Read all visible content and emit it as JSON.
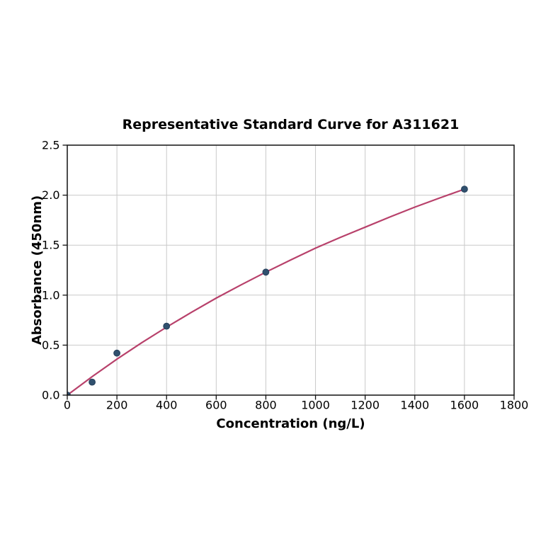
{
  "chart_data": {
    "type": "scatter",
    "title": "Representative Standard Curve for A311621",
    "xlabel": "Concentration (ng/L)",
    "ylabel": "Absorbance (450nm)",
    "xlim": [
      0,
      1800
    ],
    "ylim": [
      0,
      2.5
    ],
    "xticks": [
      0,
      200,
      400,
      600,
      800,
      1000,
      1200,
      1400,
      1600,
      1800
    ],
    "xtick_labels": [
      "0",
      "200",
      "400",
      "600",
      "800",
      "1000",
      "1200",
      "1400",
      "1600",
      "1800"
    ],
    "yticks": [
      0,
      0.5,
      1.0,
      1.5,
      2.0,
      2.5
    ],
    "ytick_labels": [
      "0.0",
      "0.5",
      "1.0",
      "1.5",
      "2.0",
      "2.5"
    ],
    "grid": true,
    "legend": "none",
    "points": {
      "name": "standards",
      "x": [
        0,
        100,
        200,
        400,
        800,
        1600
      ],
      "y": [
        0.0,
        0.13,
        0.42,
        0.69,
        1.23,
        2.06
      ]
    },
    "fit_curve": {
      "name": "fitted-standard-curve",
      "x": [
        0,
        100,
        200,
        300,
        400,
        500,
        600,
        700,
        800,
        900,
        1000,
        1100,
        1200,
        1300,
        1400,
        1500,
        1600
      ],
      "y": [
        0.0,
        0.185,
        0.36,
        0.525,
        0.68,
        0.828,
        0.97,
        1.103,
        1.23,
        1.352,
        1.47,
        1.578,
        1.68,
        1.782,
        1.88,
        1.972,
        2.06
      ]
    },
    "colors": {
      "curve": "#b8416b",
      "marker": "#30506e",
      "marker_edge": "#26415c",
      "grid": "#c9c9c9",
      "spine": "#111111",
      "text": "#000000",
      "background": "#ffffff"
    }
  }
}
